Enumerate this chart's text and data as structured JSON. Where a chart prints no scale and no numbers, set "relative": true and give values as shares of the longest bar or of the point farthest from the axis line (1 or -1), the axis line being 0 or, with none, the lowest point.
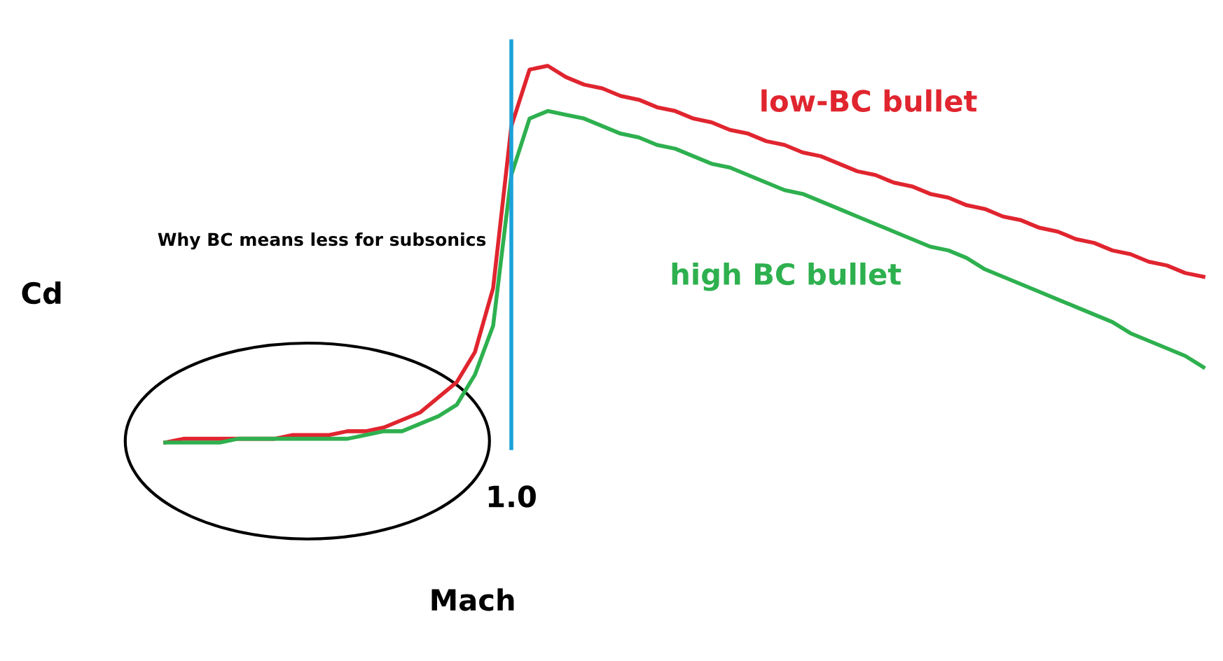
{
  "chart_data": {
    "type": "line",
    "relative": true,
    "xlabel": "Mach",
    "ylabel": "Cd",
    "categories": [
      null,
      null,
      null,
      null,
      null,
      null,
      null,
      null,
      null,
      null,
      null,
      null,
      null,
      null,
      null,
      null,
      null,
      null,
      null,
      null,
      null,
      null,
      null,
      null,
      null,
      null,
      null,
      null,
      null,
      null,
      null,
      null,
      null,
      null,
      null,
      null,
      null,
      null,
      null,
      null,
      null,
      null,
      null,
      null,
      null,
      null,
      null,
      null,
      null,
      null,
      null,
      null,
      null,
      null,
      null,
      null,
      null,
      null
    ],
    "series": [
      {
        "name": "low-BC bullet",
        "color": "#e0252f",
        "values": [
          0.0,
          0.01,
          0.01,
          0.01,
          0.01,
          0.01,
          0.01,
          0.02,
          0.02,
          0.02,
          0.03,
          0.03,
          0.04,
          0.06,
          0.08,
          0.12,
          0.16,
          0.24,
          0.41,
          0.84,
          0.99,
          1.0,
          0.97,
          0.95,
          0.94,
          0.92,
          0.91,
          0.89,
          0.88,
          0.86,
          0.85,
          0.83,
          0.82,
          0.8,
          0.79,
          0.77,
          0.76,
          0.74,
          0.72,
          0.71,
          0.69,
          0.68,
          0.66,
          0.65,
          0.63,
          0.62,
          0.6,
          0.59,
          0.57,
          0.56,
          0.54,
          0.53,
          0.51,
          0.5,
          0.48,
          0.47,
          0.45,
          0.44
        ]
      },
      {
        "name": "high BC bullet",
        "color": "#2eb04f",
        "values": [
          0.0,
          0.0,
          0.0,
          0.0,
          0.01,
          0.01,
          0.01,
          0.01,
          0.01,
          0.01,
          0.01,
          0.02,
          0.03,
          0.03,
          0.05,
          0.07,
          0.1,
          0.18,
          0.31,
          0.71,
          0.86,
          0.88,
          0.87,
          0.86,
          0.84,
          0.82,
          0.81,
          0.79,
          0.78,
          0.76,
          0.74,
          0.73,
          0.71,
          0.69,
          0.67,
          0.66,
          0.64,
          0.62,
          0.6,
          0.58,
          0.56,
          0.54,
          0.52,
          0.51,
          0.49,
          0.46,
          0.44,
          0.42,
          0.4,
          0.38,
          0.36,
          0.34,
          0.32,
          0.29,
          0.27,
          0.25,
          0.23,
          0.2
        ]
      }
    ],
    "annotations": [
      "Why BC means less for subsonics",
      "1.0"
    ],
    "legend": false,
    "marker": "none",
    "line_style": "solid"
  }
}
